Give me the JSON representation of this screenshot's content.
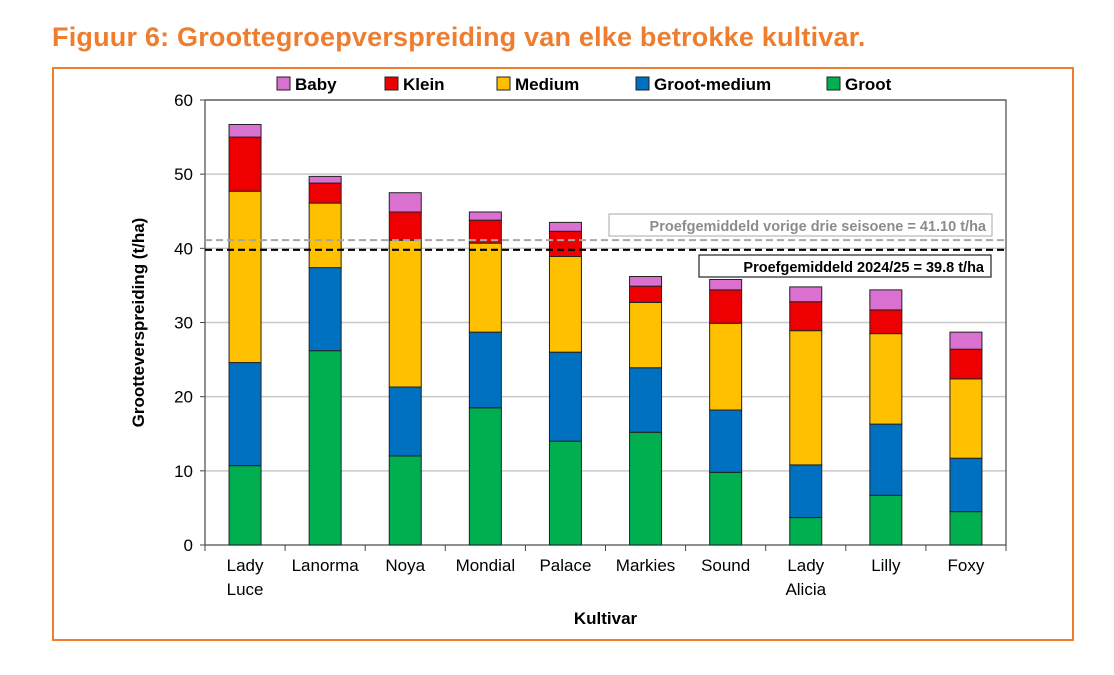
{
  "title": "Figuur 6: Groottegroepverspreiding van elke betrokke kultivar.",
  "chart_data": {
    "type": "bar",
    "stacked": true,
    "title": "Figuur 6: Groottegroepverspreiding van elke betrokke kultivar.",
    "xlabel": "Kultivar",
    "ylabel": "Grootteverspreiding (t/ha)",
    "ylim": [
      0,
      60
    ],
    "yticks": [
      0,
      10,
      20,
      30,
      40,
      50,
      60
    ],
    "grid": true,
    "legend_position": "top",
    "categories": [
      [
        "Lady",
        "Luce"
      ],
      [
        "Lanorma"
      ],
      [
        "Noya"
      ],
      [
        "Mondial"
      ],
      [
        "Palace"
      ],
      [
        "Markies"
      ],
      [
        "Sound"
      ],
      [
        "Lady",
        "Alicia"
      ],
      [
        "Lilly"
      ],
      [
        "Foxy"
      ]
    ],
    "series": [
      {
        "name": "Groot",
        "color": "#00b050",
        "values": [
          10.7,
          26.2,
          12.0,
          18.5,
          14.0,
          15.2,
          9.8,
          3.7,
          6.7,
          4.5
        ]
      },
      {
        "name": "Groot-medium",
        "color": "#0070c0",
        "values": [
          13.9,
          11.2,
          9.3,
          10.2,
          12.0,
          8.7,
          8.4,
          7.1,
          9.6,
          7.2
        ]
      },
      {
        "name": "Medium",
        "color": "#ffc000",
        "values": [
          23.1,
          8.7,
          19.8,
          12.0,
          12.9,
          8.8,
          11.7,
          18.1,
          12.2,
          10.7
        ]
      },
      {
        "name": "Klein",
        "color": "#ee0000",
        "values": [
          7.3,
          2.7,
          3.8,
          3.1,
          3.4,
          2.2,
          4.5,
          3.9,
          3.2,
          4.0
        ]
      },
      {
        "name": "Baby",
        "color": "#da70d0",
        "values": [
          1.7,
          0.9,
          2.6,
          1.1,
          1.2,
          1.3,
          1.4,
          2.0,
          2.7,
          2.3
        ]
      }
    ],
    "legend_order": [
      "Baby",
      "Klein",
      "Medium",
      "Groot-medium",
      "Groot"
    ],
    "reference_lines": [
      {
        "value": 41.1,
        "label": "Proefgemiddeld vorige drie seisoene = 41.10 t/ha",
        "color": "#a6a6a6"
      },
      {
        "value": 39.8,
        "label": "Proefgemiddeld 2024/25 = 39.8  t/ha",
        "color": "#000000"
      }
    ]
  }
}
